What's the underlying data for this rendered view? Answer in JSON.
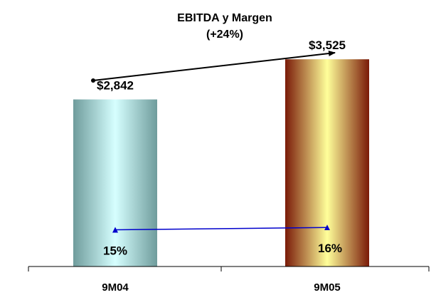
{
  "chart_data": {
    "type": "bar",
    "title": "EBITDA y Margen",
    "subtitle": "(+24%)",
    "categories": [
      "9M04",
      "9M05"
    ],
    "series": [
      {
        "values": [
          2842,
          3525
        ],
        "labels": [
          "$2,842",
          "$3,525"
        ]
      },
      {
        "values": [
          15,
          16
        ],
        "labels": [
          "15%",
          "16%"
        ]
      }
    ],
    "bar_colors": [
      [
        "#6f9c9c",
        "#d6ffff"
      ],
      [
        "#7a1a08",
        "#ffff9a"
      ]
    ],
    "line_color": "#0000cc",
    "trend_color": "#000000",
    "ylim": [
      0,
      4000
    ],
    "margin_ylim": [
      0,
      100
    ],
    "grid": false,
    "legend": "none"
  }
}
